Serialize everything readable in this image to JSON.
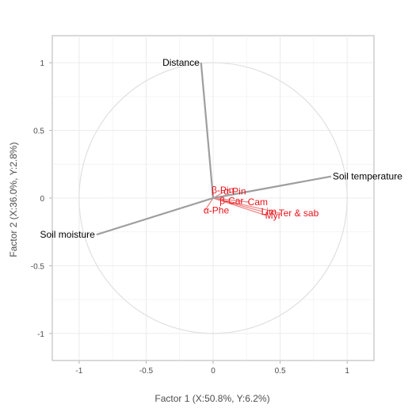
{
  "chart_data": {
    "type": "scatter",
    "subtype": "biplot-vectors",
    "xlabel": "Factor 1 (X:50.8%, Y:6.2%)",
    "ylabel": "Factor 2 (X:36.0%, Y:2.8%)",
    "xlim": [
      -1.2,
      1.2
    ],
    "ylim": [
      -1.2,
      1.2
    ],
    "xticks": [
      -1,
      -0.5,
      0,
      0.5,
      1
    ],
    "yticks": [
      -1,
      -0.5,
      0,
      0.5,
      1
    ],
    "xtick_labels": [
      "-1",
      "-0.5",
      "0",
      "0.5",
      "1"
    ],
    "ytick_labels": [
      "-1",
      "-0.5",
      "0",
      "0.5",
      "1"
    ],
    "grid": true,
    "unit_circle": true,
    "colors": {
      "environmental_vector": "#9e9e9e",
      "compound_vector": "#f08080",
      "compound_label": "#e8141b",
      "circle": "#e0e0e0",
      "grid": "#ebebeb"
    },
    "series": [
      {
        "name": "Environmental variables",
        "points": [
          {
            "label": "Distance",
            "x": -0.09,
            "y": 1.0
          },
          {
            "label": "Soil temperature",
            "x": 0.88,
            "y": 0.16
          },
          {
            "label": "Soil moisture",
            "x": -0.87,
            "y": -0.27
          }
        ]
      },
      {
        "name": "Compounds",
        "points": [
          {
            "label": "β-Pin",
            "x": 0.0,
            "y": 0.06
          },
          {
            "label": "α-Pin",
            "x": 0.09,
            "y": 0.05
          },
          {
            "label": "β-Car",
            "x": 0.06,
            "y": -0.02
          },
          {
            "label": "Cam",
            "x": 0.27,
            "y": -0.03
          },
          {
            "label": "Lim",
            "x": 0.37,
            "y": -0.1
          },
          {
            "label": "Ter & sab",
            "x": 0.5,
            "y": -0.11
          },
          {
            "label": "Myr",
            "x": 0.4,
            "y": -0.13
          },
          {
            "label": "α-Phe",
            "x": -0.06,
            "y": -0.09
          }
        ]
      }
    ]
  }
}
